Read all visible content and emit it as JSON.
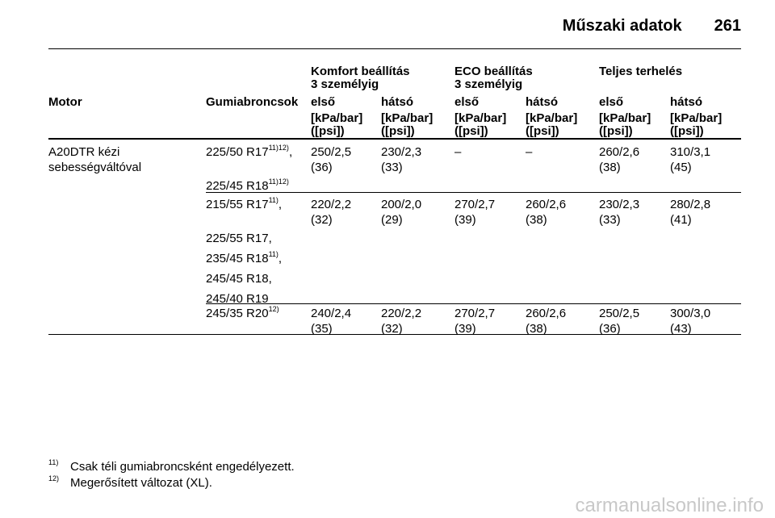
{
  "header": {
    "title": "Műszaki adatok",
    "page": "261"
  },
  "table": {
    "groups": [
      [
        "Komfort beállítás",
        "3 személyig"
      ],
      [
        "ECO beállítás",
        "3 személyig"
      ],
      [
        "Teljes terhelés"
      ]
    ],
    "columns": [
      "Motor",
      "Gumiabroncsok",
      "első",
      "hátsó",
      "első",
      "hátsó",
      "első",
      "hátsó"
    ],
    "units": [
      [
        "[kPa/bar]",
        "([psi])"
      ],
      [
        "[kPa/bar]",
        "([psi])"
      ],
      [
        "[kPa/bar]",
        "([psi])"
      ],
      [
        "[kPa/bar]",
        "([psi])"
      ],
      [
        "[kPa/bar]",
        "([psi])"
      ],
      [
        "[kPa/bar]",
        "([psi])"
      ]
    ],
    "rows": [
      {
        "motor": [
          "A20DTR kézi",
          "sebességváltóval"
        ],
        "tires": [
          {
            "text": "225/50 R17",
            "sup": "11)12)",
            "after": ","
          },
          {
            "text": "225/45 R18",
            "sup": "11)12)"
          }
        ],
        "values": [
          [
            "250/2,5",
            "(36)"
          ],
          [
            "230/2,3",
            "(33)"
          ],
          [
            "–"
          ],
          [
            "–"
          ],
          [
            "260/2,6",
            "(38)"
          ],
          [
            "310/3,1",
            "(45)"
          ]
        ]
      },
      {
        "tires": [
          {
            "text": "215/55 R17",
            "sup": "11)",
            "after": ","
          },
          {
            "text": "225/55 R17,"
          },
          {
            "text": "235/45 R18",
            "sup": "11)",
            "after": ","
          },
          {
            "text": "245/45 R18,"
          },
          {
            "text": "245/40 R19"
          }
        ],
        "values": [
          [
            "220/2,2",
            "(32)"
          ],
          [
            "200/2,0",
            "(29)"
          ],
          [
            "270/2,7",
            "(39)"
          ],
          [
            "260/2,6",
            "(38)"
          ],
          [
            "230/2,3",
            "(33)"
          ],
          [
            "280/2,8",
            "(41)"
          ]
        ]
      },
      {
        "tires": [
          {
            "text": "245/35 R20",
            "sup": "12)"
          }
        ],
        "values": [
          [
            "240/2,4",
            "(35)"
          ],
          [
            "220/2,2",
            "(32)"
          ],
          [
            "270/2,7",
            "(39)"
          ],
          [
            "260/2,6",
            "(38)"
          ],
          [
            "250/2,5",
            "(36)"
          ],
          [
            "300/3,0",
            "(43)"
          ]
        ]
      }
    ]
  },
  "footnotes": [
    {
      "mark": "11)",
      "text": "Csak téli gumiabroncsként engedélyezett."
    },
    {
      "mark": "12)",
      "text": "Megerősített változat (XL)."
    }
  ],
  "watermark": "carmanualsonline.info"
}
